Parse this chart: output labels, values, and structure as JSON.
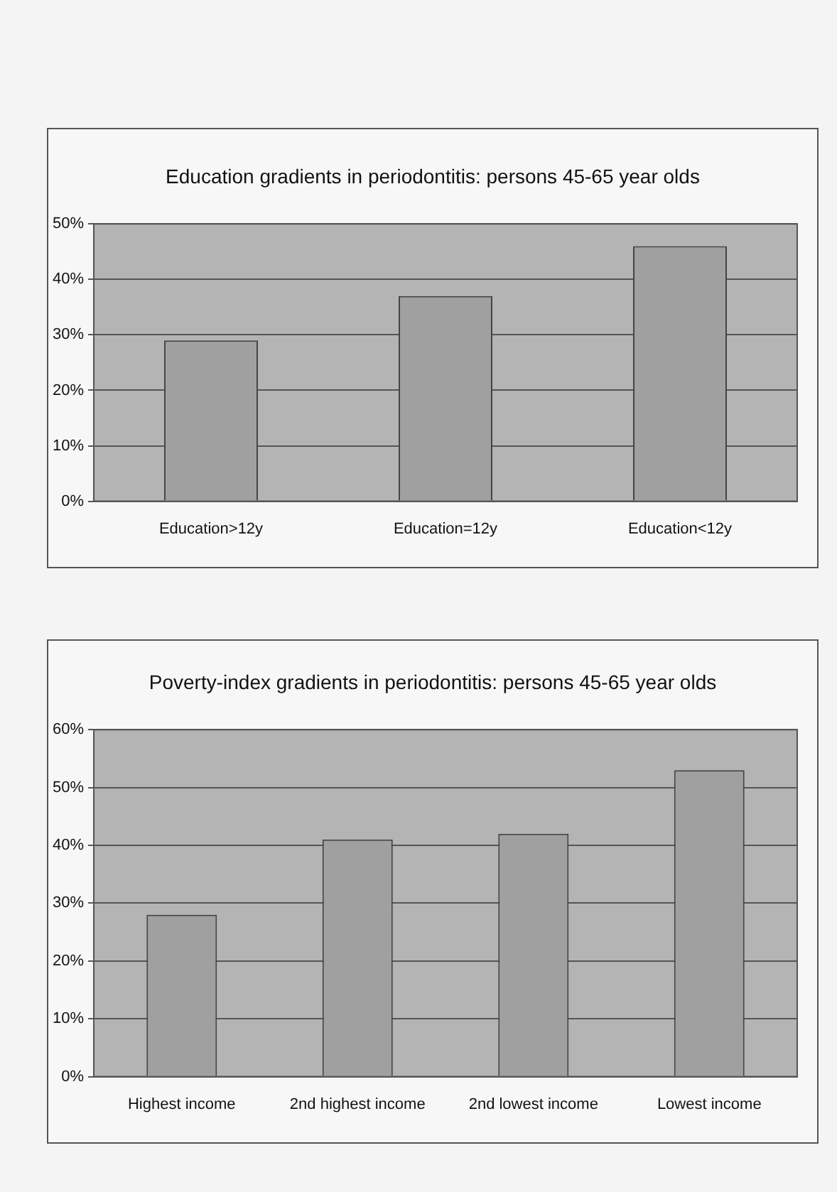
{
  "chart_data": [
    {
      "type": "bar",
      "title": "Education gradients in periodontitis: persons 45-65 year olds",
      "categories": [
        "Education>12y",
        "Education=12y",
        "Education<12y"
      ],
      "values": [
        29,
        37,
        46
      ],
      "color": "#a0a0a0",
      "ylim": [
        0,
        50
      ],
      "yticks": [
        {
          "value": 0,
          "label": "0%"
        },
        {
          "value": 10,
          "label": "10%"
        },
        {
          "value": 20,
          "label": "20%"
        },
        {
          "value": 30,
          "label": "30%"
        },
        {
          "value": 40,
          "label": "40%"
        },
        {
          "value": 50,
          "label": "50%"
        }
      ],
      "grid": "y"
    },
    {
      "type": "bar",
      "title": "Poverty-index gradients in periodontitis: persons 45-65 year olds",
      "categories": [
        "Highest income",
        "2nd highest income",
        "2nd lowest income",
        "Lowest income"
      ],
      "values": [
        28,
        41,
        42,
        53
      ],
      "color": "#a0a0a0",
      "ylim": [
        0,
        60
      ],
      "yticks": [
        {
          "value": 0,
          "label": "0%"
        },
        {
          "value": 10,
          "label": "10%"
        },
        {
          "value": 20,
          "label": "20%"
        },
        {
          "value": 30,
          "label": "30%"
        },
        {
          "value": 40,
          "label": "40%"
        },
        {
          "value": 50,
          "label": "50%"
        },
        {
          "value": 60,
          "label": "60%"
        }
      ],
      "grid": "y"
    }
  ]
}
